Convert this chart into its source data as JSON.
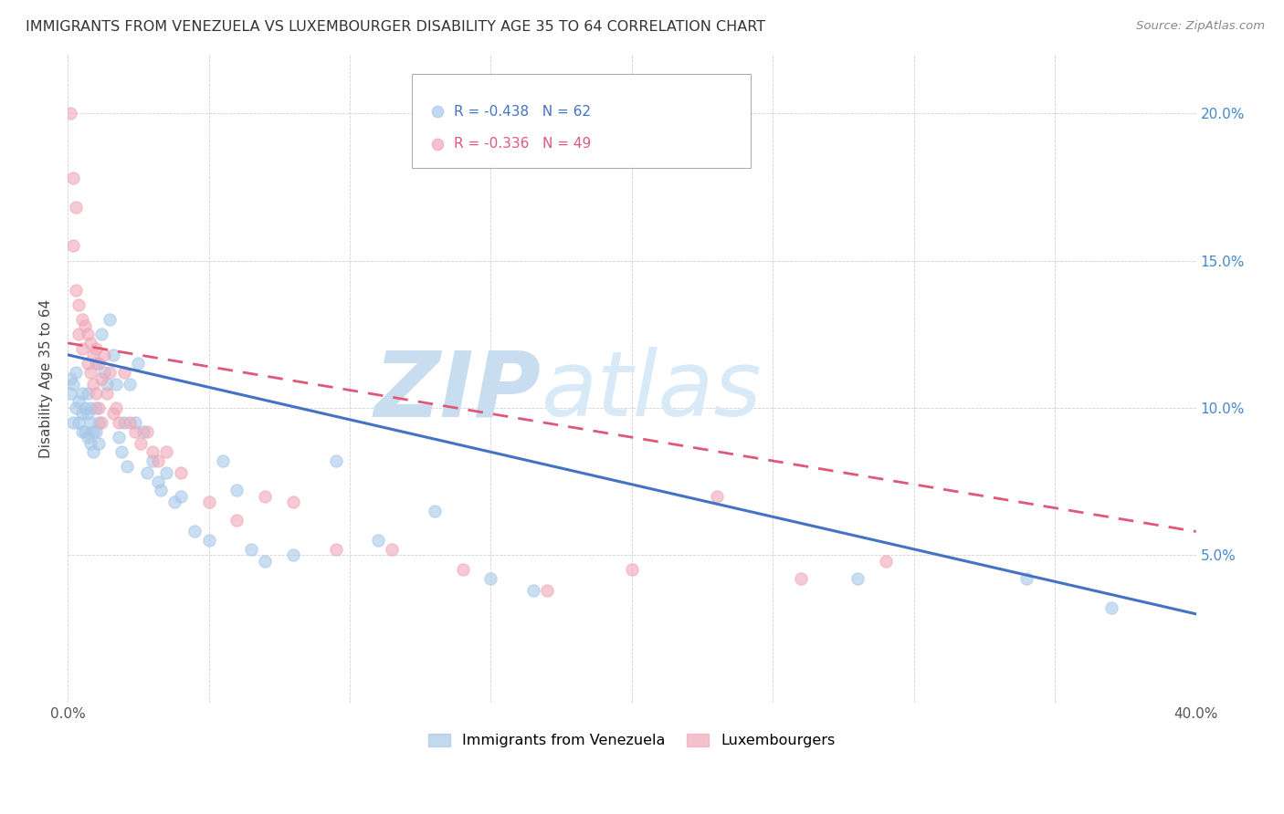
{
  "title": "IMMIGRANTS FROM VENEZUELA VS LUXEMBOURGER DISABILITY AGE 35 TO 64 CORRELATION CHART",
  "source": "Source: ZipAtlas.com",
  "ylabel": "Disability Age 35 to 64",
  "xlim": [
    0.0,
    0.4
  ],
  "ylim": [
    0.0,
    0.22
  ],
  "blue_R": -0.438,
  "blue_N": 62,
  "pink_R": -0.336,
  "pink_N": 49,
  "blue_color": "#A8C8E8",
  "pink_color": "#F0A8B8",
  "blue_line_color": "#4472C4",
  "pink_line_color": "#E05878",
  "watermark_zip": "ZIP",
  "watermark_atlas": "atlas",
  "watermark_color": "#C8DDF0",
  "legend_label_blue": "Immigrants from Venezuela",
  "legend_label_pink": "Luxembourgers",
  "blue_line_x0": 0.0,
  "blue_line_y0": 0.118,
  "blue_line_x1": 0.4,
  "blue_line_y1": 0.03,
  "pink_line_x0": 0.0,
  "pink_line_y0": 0.122,
  "pink_line_x1": 0.4,
  "pink_line_y1": 0.058,
  "blue_scatter_x": [
    0.001,
    0.001,
    0.002,
    0.002,
    0.003,
    0.003,
    0.004,
    0.004,
    0.005,
    0.005,
    0.005,
    0.006,
    0.006,
    0.007,
    0.007,
    0.007,
    0.008,
    0.008,
    0.008,
    0.009,
    0.009,
    0.01,
    0.01,
    0.01,
    0.011,
    0.011,
    0.012,
    0.013,
    0.014,
    0.015,
    0.016,
    0.017,
    0.018,
    0.019,
    0.02,
    0.021,
    0.022,
    0.024,
    0.025,
    0.027,
    0.028,
    0.03,
    0.032,
    0.033,
    0.035,
    0.038,
    0.04,
    0.045,
    0.05,
    0.055,
    0.06,
    0.065,
    0.07,
    0.08,
    0.095,
    0.11,
    0.13,
    0.15,
    0.165,
    0.28,
    0.34,
    0.37
  ],
  "blue_scatter_y": [
    0.11,
    0.105,
    0.108,
    0.095,
    0.112,
    0.1,
    0.102,
    0.095,
    0.098,
    0.092,
    0.105,
    0.1,
    0.092,
    0.098,
    0.09,
    0.105,
    0.095,
    0.088,
    0.1,
    0.092,
    0.085,
    0.1,
    0.092,
    0.115,
    0.088,
    0.095,
    0.125,
    0.112,
    0.108,
    0.13,
    0.118,
    0.108,
    0.09,
    0.085,
    0.095,
    0.08,
    0.108,
    0.095,
    0.115,
    0.092,
    0.078,
    0.082,
    0.075,
    0.072,
    0.078,
    0.068,
    0.07,
    0.058,
    0.055,
    0.082,
    0.072,
    0.052,
    0.048,
    0.05,
    0.082,
    0.055,
    0.065,
    0.042,
    0.038,
    0.042,
    0.042,
    0.032
  ],
  "pink_scatter_x": [
    0.001,
    0.002,
    0.002,
    0.003,
    0.003,
    0.004,
    0.004,
    0.005,
    0.005,
    0.006,
    0.007,
    0.007,
    0.008,
    0.008,
    0.009,
    0.009,
    0.01,
    0.01,
    0.011,
    0.011,
    0.012,
    0.012,
    0.013,
    0.014,
    0.015,
    0.016,
    0.017,
    0.018,
    0.02,
    0.022,
    0.024,
    0.026,
    0.028,
    0.03,
    0.032,
    0.035,
    0.04,
    0.05,
    0.06,
    0.07,
    0.08,
    0.095,
    0.115,
    0.14,
    0.17,
    0.2,
    0.23,
    0.26,
    0.29
  ],
  "pink_scatter_y": [
    0.2,
    0.178,
    0.155,
    0.168,
    0.14,
    0.135,
    0.125,
    0.13,
    0.12,
    0.128,
    0.125,
    0.115,
    0.122,
    0.112,
    0.118,
    0.108,
    0.12,
    0.105,
    0.115,
    0.1,
    0.11,
    0.095,
    0.118,
    0.105,
    0.112,
    0.098,
    0.1,
    0.095,
    0.112,
    0.095,
    0.092,
    0.088,
    0.092,
    0.085,
    0.082,
    0.085,
    0.078,
    0.068,
    0.062,
    0.07,
    0.068,
    0.052,
    0.052,
    0.045,
    0.038,
    0.045,
    0.07,
    0.042,
    0.048
  ]
}
